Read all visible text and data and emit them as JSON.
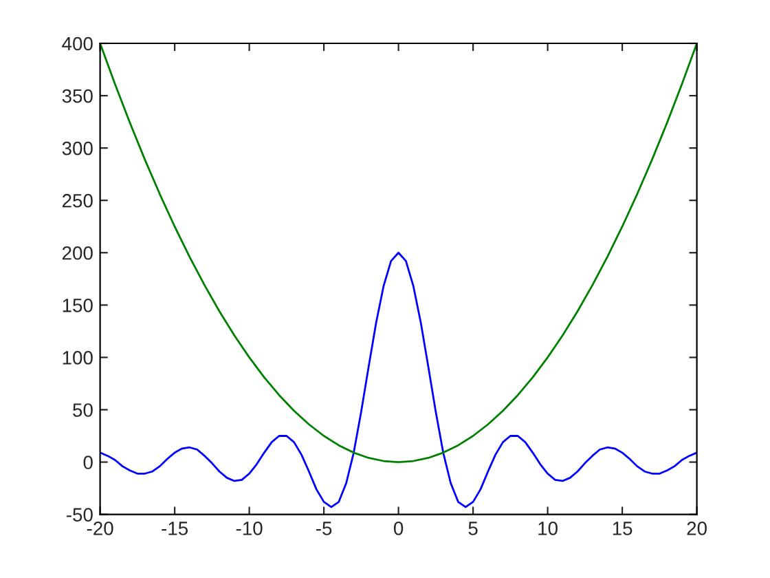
{
  "chart_data": {
    "type": "line",
    "series": [
      {
        "color": "#0000ff",
        "x": [
          -20,
          -19.5,
          -19,
          -18.5,
          -18,
          -17.5,
          -17,
          -16.5,
          -16,
          -15.5,
          -15,
          -14.5,
          -14,
          -13.5,
          -13,
          -12.5,
          -12,
          -11.5,
          -11,
          -10.5,
          -10,
          -9.5,
          -9,
          -8.5,
          -8,
          -7.5,
          -7,
          -6.5,
          -6,
          -5.5,
          -5,
          -4.5,
          -4,
          -3.5,
          -3,
          -2.5,
          -2,
          -1.5,
          -1,
          -0.5,
          0,
          0.5,
          1,
          1.5,
          2,
          2.5,
          3,
          3.5,
          4,
          4.5,
          5,
          5.5,
          6,
          6.5,
          7,
          7.5,
          8,
          8.5,
          9,
          9.5,
          10,
          10.5,
          11,
          11.5,
          12,
          12.5,
          13,
          13.5,
          14,
          14.5,
          15,
          15.5,
          16,
          16.5,
          17,
          17.5,
          18,
          18.5,
          19,
          19.5,
          20
        ],
        "values": [
          9,
          6,
          2,
          -4,
          -8,
          -11,
          -11,
          -9,
          -4,
          3,
          9,
          13,
          14,
          12,
          6,
          -1,
          -9,
          -15,
          -18,
          -17,
          -11,
          -2,
          9,
          19,
          25,
          25,
          19,
          7,
          -9,
          -26,
          -38,
          -43,
          -38,
          -20,
          9,
          48,
          91,
          133,
          168,
          192,
          200,
          192,
          168,
          133,
          91,
          48,
          9,
          -20,
          -38,
          -43,
          -38,
          -26,
          -9,
          7,
          19,
          25,
          25,
          19,
          9,
          -2,
          -11,
          -17,
          -18,
          -15,
          -9,
          -1,
          6,
          12,
          14,
          13,
          9,
          3,
          -4,
          -9,
          -11,
          -11,
          -8,
          -4,
          2,
          6,
          9
        ]
      },
      {
        "color": "#008000",
        "x": [
          -20,
          -19,
          -18,
          -17,
          -16,
          -15,
          -14,
          -13,
          -12,
          -11,
          -10,
          -9,
          -8,
          -7,
          -6,
          -5,
          -4,
          -3,
          -2,
          -1,
          0,
          1,
          2,
          3,
          4,
          5,
          6,
          7,
          8,
          9,
          10,
          11,
          12,
          13,
          14,
          15,
          16,
          17,
          18,
          19,
          20
        ],
        "values": [
          400,
          361,
          324,
          289,
          256,
          225,
          196,
          169,
          144,
          121,
          100,
          81,
          64,
          49,
          36,
          25,
          16,
          9,
          4,
          1,
          0,
          1,
          4,
          9,
          16,
          25,
          36,
          49,
          64,
          81,
          100,
          121,
          144,
          169,
          196,
          225,
          256,
          289,
          324,
          361,
          400
        ]
      }
    ],
    "xlim": [
      -20,
      20
    ],
    "xticks": [
      -20,
      -15,
      -10,
      -5,
      0,
      5,
      10,
      15,
      20
    ],
    "ylim": [
      -50,
      400
    ],
    "yticks": [
      -50,
      0,
      50,
      100,
      150,
      200,
      250,
      300,
      350,
      400
    ],
    "grid": false,
    "legend": false
  }
}
